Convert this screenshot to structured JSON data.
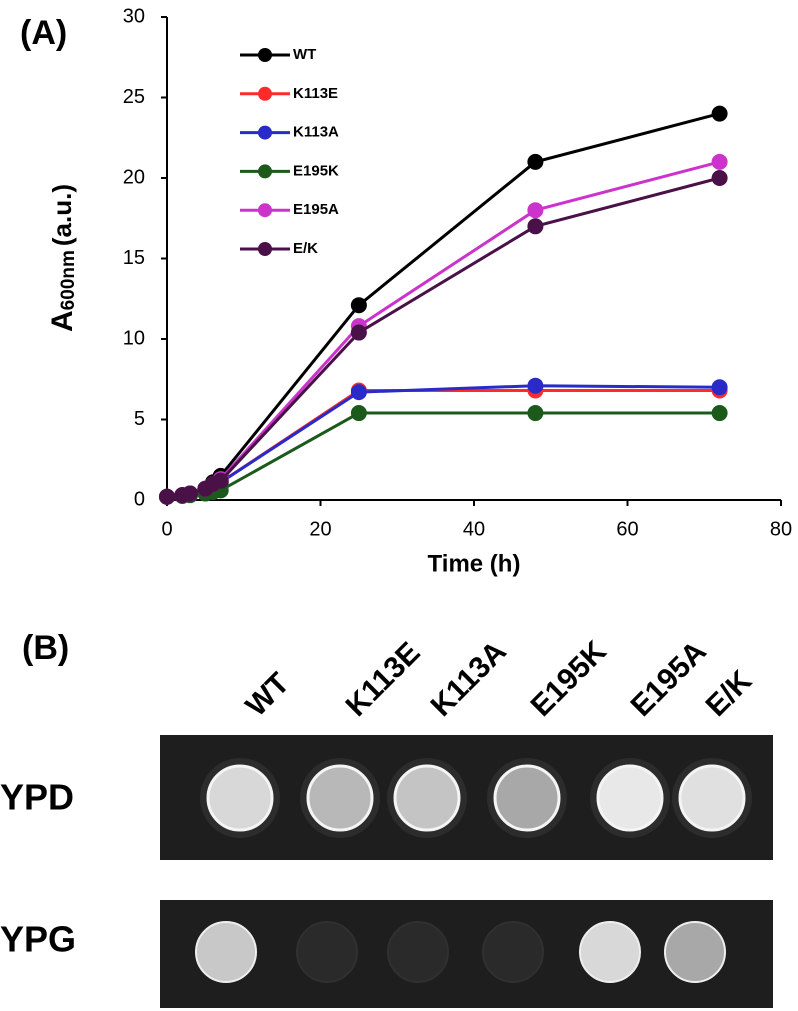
{
  "panel_a_label": "(A)",
  "chart_data": {
    "type": "line",
    "ylabel": {
      "main": "A",
      "sub": "600nm",
      "unit": "(a.u.)"
    },
    "xlabel": "Time (h)",
    "x": [
      0,
      2,
      3,
      5,
      6,
      7,
      25,
      48,
      72
    ],
    "xlim": [
      0,
      80
    ],
    "xticks": [
      0,
      20,
      40,
      60,
      80
    ],
    "ylim": [
      0,
      30
    ],
    "yticks": [
      0,
      5,
      10,
      15,
      20,
      25,
      30
    ],
    "grid": false,
    "legend": "upper left",
    "series": [
      {
        "name": "WT",
        "color": "#000000",
        "values": [
          0.2,
          0.3,
          0.4,
          0.7,
          1.1,
          1.5,
          12.1,
          21,
          24
        ]
      },
      {
        "name": "K113E",
        "color": "#ff2a2a",
        "values": [
          0.2,
          0.3,
          0.4,
          0.6,
          0.9,
          1.1,
          6.8,
          6.8,
          6.8
        ]
      },
      {
        "name": "K113A",
        "color": "#2a2ac8",
        "values": [
          0.2,
          0.3,
          0.4,
          0.6,
          0.9,
          1.1,
          6.7,
          7.1,
          7.0
        ]
      },
      {
        "name": "E195K",
        "color": "#1c5a1c",
        "values": [
          0.2,
          0.25,
          0.3,
          0.4,
          0.5,
          0.6,
          5.4,
          5.4,
          5.4
        ]
      },
      {
        "name": "E195A",
        "color": "#cc33cc",
        "values": [
          0.2,
          0.3,
          0.4,
          0.7,
          1.0,
          1.3,
          10.8,
          18,
          21
        ]
      },
      {
        "name": "E/K",
        "color": "#4a1048",
        "values": [
          0.2,
          0.3,
          0.4,
          0.7,
          1.0,
          1.2,
          10.4,
          17,
          20
        ]
      }
    ]
  },
  "panel_b": {
    "label": "(B)",
    "columns": [
      "WT",
      "K113E",
      "K113A",
      "E195K",
      "E195A",
      "E/K"
    ],
    "rows": [
      "YPD",
      "YPG"
    ]
  }
}
